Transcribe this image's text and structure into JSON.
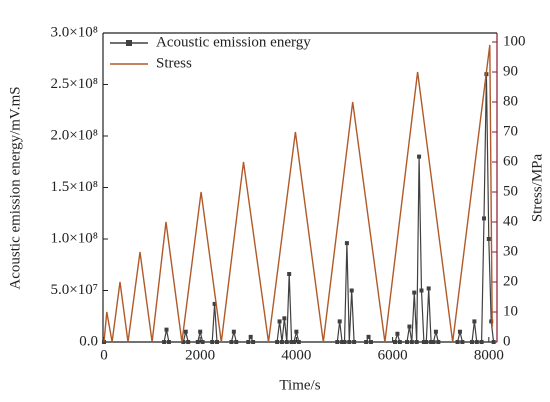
{
  "chart_data": {
    "type": "line",
    "xlabel": "Time/s",
    "ylabel": "Acoustic emission energy/mV.mS",
    "y2label": "Stress/MPa",
    "xlim": [
      -20,
      8170
    ],
    "xticks": [
      0,
      2000,
      4000,
      6000,
      8000
    ],
    "ylim": [
      0,
      300000000
    ],
    "yticks": [
      {
        "value": 0,
        "label": "0.0"
      },
      {
        "value": 50000000,
        "label": "5.0×10⁷"
      },
      {
        "value": 100000000,
        "label": "1.0×10⁸"
      },
      {
        "value": 150000000,
        "label": "1.5×10⁸"
      },
      {
        "value": 200000000,
        "label": "2.0×10⁸"
      },
      {
        "value": 250000000,
        "label": "2.5×10⁸"
      },
      {
        "value": 300000000,
        "label": "3.0×10⁸"
      }
    ],
    "y2lim": [
      0,
      103
    ],
    "y2ticks": [
      0,
      10,
      20,
      30,
      40,
      50,
      60,
      70,
      80,
      90,
      100
    ],
    "legend": "upper left",
    "series": [
      {
        "name": "Acoustic emission energy",
        "color": "#404040",
        "marker": "square",
        "x": [
          0,
          1250,
          1300,
          1350,
          1650,
          1700,
          1750,
          1950,
          2000,
          2050,
          2250,
          2300,
          2350,
          2650,
          2700,
          2750,
          3000,
          3050,
          3100,
          3600,
          3650,
          3700,
          3750,
          3800,
          3850,
          3900,
          3950,
          4000,
          4050,
          4850,
          4900,
          4950,
          5000,
          5050,
          5100,
          5150,
          5200,
          5450,
          5500,
          5550,
          6050,
          6100,
          6150,
          6300,
          6350,
          6400,
          6450,
          6500,
          6550,
          6600,
          6650,
          6700,
          6750,
          6800,
          6850,
          6900,
          6950,
          7350,
          7400,
          7450,
          7650,
          7700,
          7750,
          7850,
          7900,
          7950,
          8000,
          8050,
          8100
        ],
        "values": [
          0,
          0,
          12000000,
          0,
          0,
          10000000,
          0,
          0,
          10000000,
          0,
          0,
          37000000,
          0,
          0,
          10000000,
          0,
          0,
          5000000,
          0,
          0,
          20000000,
          0,
          23000000,
          0,
          66000000,
          0,
          0,
          10000000,
          0,
          0,
          20000000,
          0,
          0,
          96000000,
          0,
          50000000,
          0,
          0,
          5000000,
          0,
          0,
          8000000,
          0,
          0,
          15000000,
          0,
          48000000,
          0,
          180000000,
          50000000,
          0,
          0,
          52000000,
          0,
          0,
          10000000,
          0,
          0,
          10000000,
          0,
          0,
          20000000,
          0,
          0,
          120000000,
          260000000,
          100000000,
          20000000,
          0
        ]
      },
      {
        "name": "Stress",
        "color": "#b05a2a",
        "axis": "y2",
        "x": [
          0,
          60,
          170,
          333,
          500,
          750,
          1000,
          1290,
          1620,
          2020,
          2440,
          2900,
          3420,
          3980,
          4560,
          5170,
          5840,
          6520,
          7250,
          8020,
          8070
        ],
        "values": [
          0,
          10,
          0,
          20,
          0,
          30,
          0,
          40,
          0,
          50,
          0,
          60,
          0,
          70,
          0,
          80,
          0,
          90,
          0,
          99,
          5
        ]
      }
    ]
  }
}
